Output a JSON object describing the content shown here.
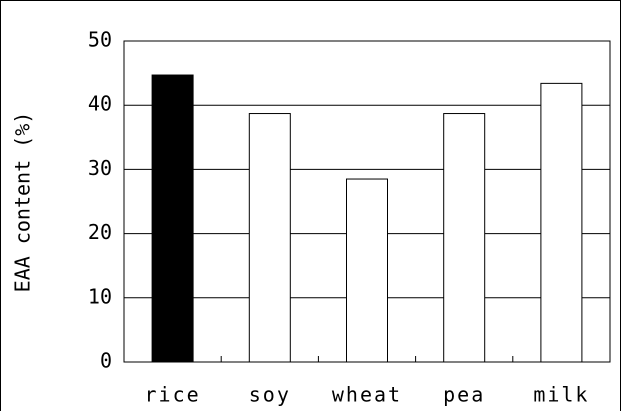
{
  "chart_data": {
    "type": "bar",
    "ylabel": "EAA content (%)",
    "categories": [
      "rice",
      "soy",
      "wheat",
      "pea",
      "milk"
    ],
    "values": [
      44.7,
      38.7,
      28.5,
      38.7,
      43.4
    ],
    "colors": [
      "#000000",
      "#ffffff",
      "#ffffff",
      "#ffffff",
      "#ffffff"
    ],
    "ylim": [
      0,
      50
    ],
    "yticks": [
      0,
      10,
      20,
      30,
      40,
      50
    ],
    "grid": true
  }
}
